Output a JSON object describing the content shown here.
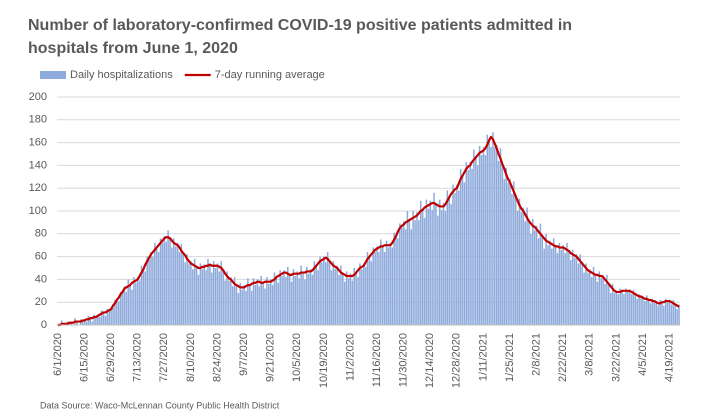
{
  "chart_data": {
    "type": "bar",
    "title": [
      "Number of laboratory-confirmed COVID-19 positive patients admitted in",
      "hospitals from June 1, 2020"
    ],
    "source": "Data Source: Waco-McLennan County Public Health District",
    "ylim": [
      0,
      200
    ],
    "yticks": [
      0,
      20,
      40,
      60,
      80,
      100,
      120,
      140,
      160,
      180,
      200
    ],
    "grid": true,
    "categories": [
      "6/1/2020",
      null,
      null,
      null,
      null,
      null,
      null,
      null,
      null,
      null,
      null,
      null,
      null,
      null,
      "6/15/2020",
      null,
      null,
      null,
      null,
      null,
      null,
      null,
      null,
      null,
      null,
      null,
      null,
      null,
      "6/29/2020",
      null,
      null,
      null,
      null,
      null,
      null,
      null,
      null,
      null,
      null,
      null,
      null,
      null,
      "7/13/2020",
      null,
      null,
      null,
      null,
      null,
      null,
      null,
      null,
      null,
      null,
      null,
      null,
      null,
      "7/27/2020",
      null,
      null,
      null,
      null,
      null,
      null,
      null,
      null,
      null,
      null,
      null,
      null,
      null,
      "8/10/2020",
      null,
      null,
      null,
      null,
      null,
      null,
      null,
      null,
      null,
      null,
      null,
      null,
      null,
      "8/24/2020",
      null,
      null,
      null,
      null,
      null,
      null,
      null,
      null,
      null,
      null,
      null,
      null,
      null,
      "9/7/2020",
      null,
      null,
      null,
      null,
      null,
      null,
      null,
      null,
      null,
      null,
      null,
      null,
      null,
      "9/21/2020",
      null,
      null,
      null,
      null,
      null,
      null,
      null,
      null,
      null,
      null,
      null,
      null,
      null,
      "10/5/2020",
      null,
      null,
      null,
      null,
      null,
      null,
      null,
      null,
      null,
      null,
      null,
      null,
      null,
      "10/19/2020",
      null,
      null,
      null,
      null,
      null,
      null,
      null,
      null,
      null,
      null,
      null,
      null,
      null,
      "11/2/2020",
      null,
      null,
      null,
      null,
      null,
      null,
      null,
      null,
      null,
      null,
      null,
      null,
      null,
      "11/16/2020",
      null,
      null,
      null,
      null,
      null,
      null,
      null,
      null,
      null,
      null,
      null,
      null,
      null,
      "11/30/2020",
      null,
      null,
      null,
      null,
      null,
      null,
      null,
      null,
      null,
      null,
      null,
      null,
      null,
      "12/14/2020",
      null,
      null,
      null,
      null,
      null,
      null,
      null,
      null,
      null,
      null,
      null,
      null,
      null,
      "12/28/2020",
      null,
      null,
      null,
      null,
      null,
      null,
      null,
      null,
      null,
      null,
      null,
      null,
      null,
      "1/11/2021",
      null,
      null,
      null,
      null,
      null,
      null,
      null,
      null,
      null,
      null,
      null,
      null,
      null,
      "1/25/2021",
      null,
      null,
      null,
      null,
      null,
      null,
      null,
      null,
      null,
      null,
      null,
      null,
      null,
      "2/8/2021",
      null,
      null,
      null,
      null,
      null,
      null,
      null,
      null,
      null,
      null,
      null,
      null,
      null,
      "2/22/2021",
      null,
      null,
      null,
      null,
      null,
      null,
      null,
      null,
      null,
      null,
      null,
      null,
      null,
      "3/8/2021",
      null,
      null,
      null,
      null,
      null,
      null,
      null,
      null,
      null,
      null,
      null,
      null,
      null,
      "3/22/2021",
      null,
      null,
      null,
      null,
      null,
      null,
      null,
      null,
      null,
      null,
      null,
      null,
      null,
      "4/5/2021",
      null,
      null,
      null,
      null,
      null,
      null,
      null,
      null,
      null,
      null,
      null,
      null,
      null,
      "4/19/2021",
      null,
      null,
      null,
      null,
      null
    ],
    "series": [
      {
        "name": "Daily hospitalizations",
        "type": "bar",
        "color": "#8eaadb",
        "values": [
          1,
          0,
          4,
          1,
          0,
          3,
          1,
          3,
          0,
          6,
          3,
          0,
          5,
          3,
          5,
          3,
          8,
          6,
          3,
          9,
          6,
          9,
          7,
          13,
          11,
          8,
          14,
          12,
          15,
          15,
          22,
          22,
          21,
          29,
          28,
          34,
          29,
          40,
          35,
          31,
          42,
          37,
          42,
          39,
          52,
          49,
          47,
          60,
          57,
          64,
          60,
          72,
          68,
          64,
          76,
          72,
          78,
          73,
          83,
          76,
          68,
          76,
          69,
          72,
          64,
          71,
          63,
          55,
          62,
          54,
          56,
          49,
          58,
          51,
          44,
          54,
          49,
          53,
          48,
          58,
          53,
          46,
          56,
          50,
          54,
          47,
          56,
          48,
          39,
          47,
          39,
          42,
          34,
          42,
          35,
          28,
          37,
          31,
          35,
          30,
          41,
          35,
          30,
          41,
          35,
          40,
          34,
          43,
          37,
          32,
          42,
          36,
          40,
          35,
          46,
          42,
          37,
          48,
          43,
          48,
          42,
          51,
          44,
          38,
          49,
          43,
          47,
          41,
          52,
          46,
          40,
          51,
          45,
          49,
          44,
          56,
          52,
          48,
          60,
          55,
          60,
          55,
          64,
          56,
          48,
          56,
          49,
          52,
          44,
          52,
          45,
          38,
          47,
          41,
          45,
          39,
          50,
          46,
          42,
          54,
          49,
          54,
          51,
          64,
          60,
          56,
          68,
          64,
          69,
          64,
          75,
          69,
          64,
          74,
          68,
          72,
          68,
          81,
          78,
          76,
          89,
          85,
          91,
          84,
          100,
          92,
          84,
          100,
          92,
          99,
          92,
          109,
          101,
          94,
          110,
          102,
          109,
          101,
          116,
          106,
          96,
          110,
          101,
          107,
          100,
          118,
          112,
          106,
          123,
          116,
          123,
          118,
          137,
          131,
          125,
          143,
          136,
          143,
          137,
          154,
          147,
          140,
          157,
          149,
          156,
          149,
          167,
          162,
          156,
          169,
          156,
          158,
          144,
          155,
          141,
          128,
          138,
          125,
          128,
          115,
          126,
          113,
          100,
          111,
          99,
          103,
          91,
          103,
          91,
          80,
          93,
          83,
          87,
          76,
          89,
          78,
          67,
          80,
          70,
          74,
          67,
          76,
          69,
          63,
          72,
          66,
          70,
          63,
          72,
          65,
          57,
          66,
          59,
          62,
          54,
          62,
          54,
          46,
          54,
          46,
          49,
          42,
          51,
          44,
          38,
          47,
          41,
          44,
          36,
          44,
          36,
          28,
          36,
          28,
          30,
          27,
          32,
          30,
          27,
          32,
          29,
          31,
          27,
          31,
          27,
          23,
          27,
          24,
          25,
          21,
          26,
          22,
          19,
          23,
          20,
          21,
          17,
          22,
          20,
          17,
          23,
          20,
          22,
          18,
          22,
          18,
          14,
          18
        ]
      },
      {
        "name": "7-day running average",
        "type": "line",
        "color": "#c00000",
        "values": [
          0,
          0,
          1,
          1,
          1,
          1,
          2,
          2,
          2,
          3,
          3,
          3,
          3,
          4,
          4,
          5,
          5,
          6,
          6,
          7,
          7,
          8,
          9,
          10,
          11,
          11,
          12,
          13,
          14,
          17,
          19,
          22,
          24,
          27,
          29,
          32,
          33,
          34,
          35,
          37,
          38,
          39,
          40,
          43,
          46,
          49,
          53,
          56,
          59,
          62,
          64,
          66,
          68,
          70,
          72,
          74,
          76,
          77,
          77,
          76,
          74,
          72,
          71,
          70,
          68,
          65,
          63,
          61,
          58,
          56,
          54,
          53,
          52,
          51,
          50,
          50,
          51,
          51,
          52,
          52,
          53,
          52,
          52,
          52,
          52,
          51,
          50,
          48,
          45,
          43,
          41,
          40,
          38,
          36,
          35,
          34,
          33,
          33,
          33,
          34,
          35,
          35,
          36,
          37,
          37,
          38,
          38,
          37,
          37,
          38,
          38,
          38,
          38,
          39,
          40,
          42,
          43,
          44,
          45,
          46,
          46,
          45,
          44,
          44,
          45,
          45,
          45,
          45,
          46,
          46,
          46,
          47,
          47,
          47,
          48,
          50,
          52,
          54,
          56,
          57,
          58,
          59,
          58,
          56,
          54,
          52,
          51,
          50,
          48,
          46,
          45,
          44,
          43,
          43,
          43,
          43,
          44,
          46,
          48,
          50,
          51,
          52,
          55,
          58,
          60,
          62,
          64,
          66,
          67,
          68,
          69,
          69,
          70,
          70,
          70,
          70,
          72,
          75,
          78,
          82,
          85,
          87,
          88,
          90,
          91,
          92,
          93,
          94,
          95,
          96,
          98,
          100,
          101,
          103,
          104,
          105,
          106,
          107,
          107,
          106,
          105,
          104,
          104,
          104,
          106,
          109,
          112,
          115,
          117,
          119,
          120,
          124,
          128,
          131,
          134,
          137,
          139,
          140,
          143,
          145,
          147,
          149,
          151,
          152,
          153,
          155,
          158,
          162,
          165,
          163,
          159,
          155,
          150,
          146,
          141,
          137,
          132,
          128,
          125,
          121,
          117,
          113,
          109,
          105,
          102,
          100,
          97,
          94,
          91,
          89,
          87,
          86,
          84,
          82,
          80,
          78,
          76,
          74,
          73,
          72,
          71,
          70,
          69,
          69,
          68,
          68,
          68,
          67,
          66,
          65,
          63,
          62,
          61,
          60,
          58,
          56,
          54,
          52,
          50,
          48,
          47,
          46,
          45,
          44,
          44,
          43,
          43,
          42,
          40,
          38,
          36,
          34,
          32,
          30,
          29,
          29,
          29,
          30,
          30,
          30,
          30,
          30,
          29,
          28,
          27,
          26,
          25,
          25,
          24,
          23,
          23,
          22,
          22,
          21,
          21,
          20,
          19,
          19,
          20,
          20,
          21,
          21,
          21,
          20,
          19,
          18,
          17,
          16
        ]
      }
    ]
  }
}
